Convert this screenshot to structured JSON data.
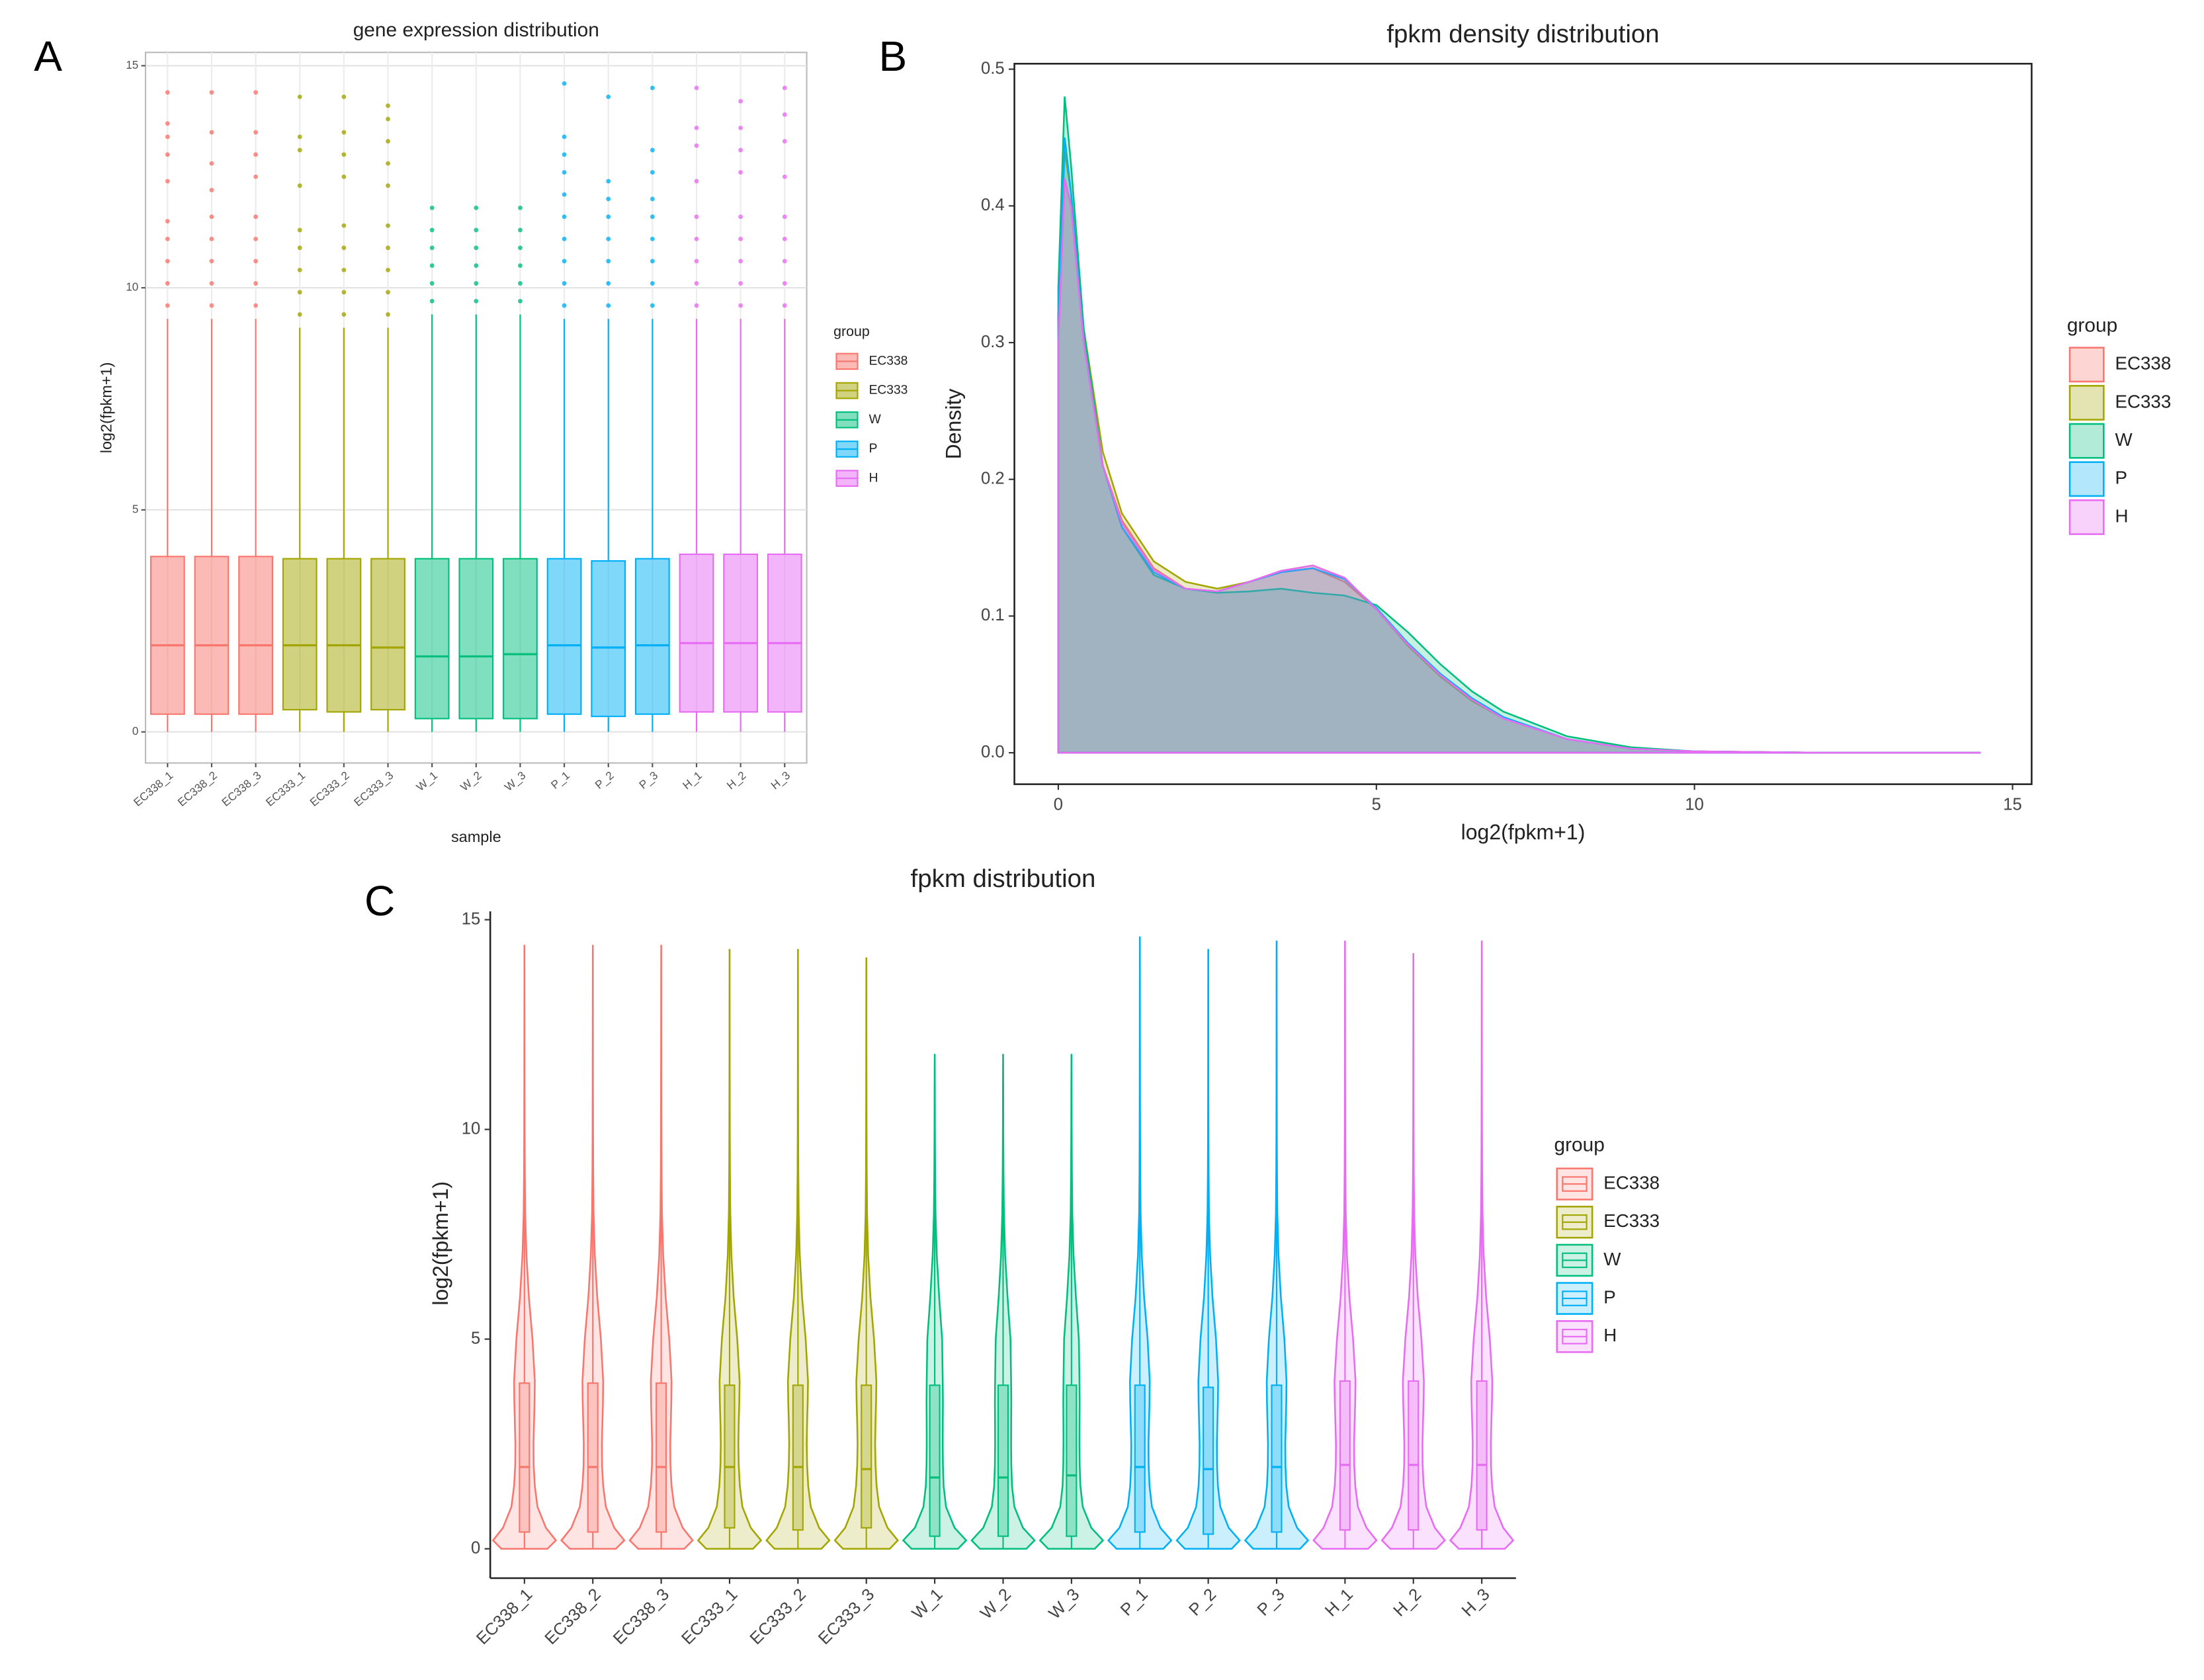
{
  "chart_data": [
    {
      "type": "boxplot",
      "panel_label": "A",
      "title": "gene expression distribution",
      "x_label": "sample",
      "y_label": "log2(fpkm+1)",
      "legend_title": "group",
      "categories": [
        "EC338_1",
        "EC338_2",
        "EC338_3",
        "EC333_1",
        "EC333_2",
        "EC333_3",
        "W_1",
        "W_2",
        "W_3",
        "P_1",
        "P_2",
        "P_3",
        "H_1",
        "H_2",
        "H_3"
      ],
      "ylim": [
        -0.7,
        15.3
      ],
      "yticks": [
        0,
        5,
        10,
        15
      ],
      "grid": true,
      "series": [
        {
          "name": "EC338",
          "color": "#F8766D",
          "boxes": [
            {
              "min": 0,
              "q1": 0.4,
              "median": 1.95,
              "q3": 3.95,
              "max": 9.3,
              "outliers": [
                9.6,
                10.1,
                10.6,
                11.1,
                11.5,
                12.4,
                13.0,
                13.4,
                13.7,
                14.4
              ]
            },
            {
              "min": 0,
              "q1": 0.4,
              "median": 1.95,
              "q3": 3.95,
              "max": 9.3,
              "outliers": [
                9.6,
                10.1,
                10.6,
                11.1,
                11.6,
                12.2,
                12.8,
                13.5,
                14.4
              ]
            },
            {
              "min": 0,
              "q1": 0.4,
              "median": 1.95,
              "q3": 3.95,
              "max": 9.3,
              "outliers": [
                9.6,
                10.1,
                10.6,
                11.1,
                11.6,
                12.5,
                13.0,
                13.5,
                14.4
              ]
            }
          ]
        },
        {
          "name": "EC333",
          "color": "#A3A500",
          "boxes": [
            {
              "min": 0,
              "q1": 0.5,
              "median": 1.95,
              "q3": 3.9,
              "max": 9.1,
              "outliers": [
                9.4,
                9.9,
                10.4,
                10.9,
                11.3,
                12.3,
                13.1,
                13.4,
                14.3
              ]
            },
            {
              "min": 0,
              "q1": 0.45,
              "median": 1.95,
              "q3": 3.9,
              "max": 9.1,
              "outliers": [
                9.4,
                9.9,
                10.4,
                10.9,
                11.4,
                12.5,
                13.0,
                13.5,
                14.3
              ]
            },
            {
              "min": 0,
              "q1": 0.5,
              "median": 1.9,
              "q3": 3.9,
              "max": 9.1,
              "outliers": [
                9.4,
                9.9,
                10.4,
                10.9,
                11.4,
                12.3,
                12.8,
                13.3,
                13.8,
                14.1
              ]
            }
          ]
        },
        {
          "name": "W",
          "color": "#00BF7D",
          "boxes": [
            {
              "min": 0,
              "q1": 0.3,
              "median": 1.7,
              "q3": 3.9,
              "max": 9.4,
              "outliers": [
                9.7,
                10.1,
                10.5,
                10.9,
                11.3,
                11.8
              ]
            },
            {
              "min": 0,
              "q1": 0.3,
              "median": 1.7,
              "q3": 3.9,
              "max": 9.4,
              "outliers": [
                9.7,
                10.1,
                10.5,
                10.9,
                11.3,
                11.8
              ]
            },
            {
              "min": 0,
              "q1": 0.3,
              "median": 1.75,
              "q3": 3.9,
              "max": 9.4,
              "outliers": [
                9.7,
                10.1,
                10.5,
                10.9,
                11.3,
                11.8
              ]
            }
          ]
        },
        {
          "name": "P",
          "color": "#00B0F6",
          "boxes": [
            {
              "min": 0,
              "q1": 0.4,
              "median": 1.95,
              "q3": 3.9,
              "max": 9.3,
              "outliers": [
                9.6,
                10.1,
                10.6,
                11.1,
                11.6,
                12.1,
                12.6,
                13.0,
                13.4,
                14.6
              ]
            },
            {
              "min": 0,
              "q1": 0.35,
              "median": 1.9,
              "q3": 3.85,
              "max": 9.3,
              "outliers": [
                9.6,
                10.1,
                10.6,
                11.1,
                11.6,
                12.0,
                12.4,
                14.3
              ]
            },
            {
              "min": 0,
              "q1": 0.4,
              "median": 1.95,
              "q3": 3.9,
              "max": 9.3,
              "outliers": [
                9.6,
                10.1,
                10.6,
                11.1,
                11.6,
                12.0,
                12.6,
                13.1,
                14.5
              ]
            }
          ]
        },
        {
          "name": "H",
          "color": "#E76BF3",
          "boxes": [
            {
              "min": 0,
              "q1": 0.45,
              "median": 2.0,
              "q3": 4.0,
              "max": 9.3,
              "outliers": [
                9.6,
                10.1,
                10.6,
                11.1,
                11.6,
                12.4,
                13.2,
                13.6,
                14.5
              ]
            },
            {
              "min": 0,
              "q1": 0.45,
              "median": 2.0,
              "q3": 4.0,
              "max": 9.3,
              "outliers": [
                9.6,
                10.1,
                10.6,
                11.1,
                11.6,
                12.6,
                13.1,
                13.6,
                14.2
              ]
            },
            {
              "min": 0,
              "q1": 0.45,
              "median": 2.0,
              "q3": 4.0,
              "max": 9.3,
              "outliers": [
                9.6,
                10.1,
                10.6,
                11.1,
                11.6,
                12.5,
                13.3,
                13.9,
                14.5
              ]
            }
          ]
        }
      ]
    },
    {
      "type": "density",
      "panel_label": "B",
      "title": "fpkm density distribution",
      "x_label": "log2(fpkm+1)",
      "y_label": "Density",
      "legend_title": "group",
      "x": [
        0,
        0.1,
        0.2,
        0.4,
        0.7,
        1,
        1.5,
        2,
        2.5,
        3,
        3.5,
        4,
        4.5,
        5,
        5.5,
        6,
        6.5,
        7,
        8,
        9,
        10,
        12,
        14.5
      ],
      "xlim": [
        -0.69,
        15.3
      ],
      "ylim": [
        -0.023,
        0.504
      ],
      "xticks": [
        0,
        5,
        10,
        15
      ],
      "yticks": [
        {
          "value": 0,
          "label": "0.0"
        },
        0.1,
        0.2,
        0.3,
        0.4,
        0.5
      ],
      "series": [
        {
          "name": "EC338",
          "color": "#F8766D",
          "values": [
            0.3,
            0.42,
            0.4,
            0.3,
            0.21,
            0.17,
            0.135,
            0.12,
            0.118,
            0.125,
            0.132,
            0.135,
            0.125,
            0.105,
            0.08,
            0.058,
            0.04,
            0.026,
            0.01,
            0.003,
            0.001,
            0,
            0
          ]
        },
        {
          "name": "EC333",
          "color": "#A3A500",
          "values": [
            0.32,
            0.44,
            0.41,
            0.31,
            0.22,
            0.175,
            0.14,
            0.125,
            0.12,
            0.125,
            0.133,
            0.137,
            0.128,
            0.105,
            0.078,
            0.056,
            0.038,
            0.025,
            0.01,
            0.003,
            0.001,
            0,
            0
          ]
        },
        {
          "name": "W",
          "color": "#00BF7D",
          "values": [
            0.34,
            0.48,
            0.43,
            0.31,
            0.21,
            0.165,
            0.13,
            0.12,
            0.117,
            0.118,
            0.12,
            0.117,
            0.115,
            0.108,
            0.088,
            0.065,
            0.045,
            0.03,
            0.012,
            0.004,
            0.001,
            0,
            0
          ]
        },
        {
          "name": "P",
          "color": "#00B0F6",
          "values": [
            0.32,
            0.45,
            0.41,
            0.3,
            0.21,
            0.165,
            0.132,
            0.12,
            0.118,
            0.125,
            0.132,
            0.135,
            0.127,
            0.106,
            0.08,
            0.058,
            0.04,
            0.026,
            0.01,
            0.003,
            0.001,
            0,
            0
          ]
        },
        {
          "name": "H",
          "color": "#E76BF3",
          "values": [
            0.3,
            0.42,
            0.4,
            0.3,
            0.21,
            0.168,
            0.134,
            0.12,
            0.118,
            0.125,
            0.133,
            0.137,
            0.128,
            0.105,
            0.079,
            0.057,
            0.039,
            0.025,
            0.01,
            0.003,
            0.001,
            0,
            0
          ]
        }
      ]
    },
    {
      "type": "violin",
      "panel_label": "C",
      "title": "fpkm distribution",
      "y_label": "log2(fpkm+1)",
      "legend_title": "group",
      "categories": [
        "EC338_1",
        "EC338_2",
        "EC338_3",
        "EC333_1",
        "EC333_2",
        "EC333_3",
        "W_1",
        "W_2",
        "W_3",
        "P_1",
        "P_2",
        "P_3",
        "H_1",
        "H_2",
        "H_3"
      ],
      "ylim": [
        -0.7,
        15.2
      ],
      "yticks": [
        0,
        5,
        10,
        15
      ],
      "density_y": [
        0,
        0.2,
        0.5,
        1,
        1.5,
        2,
        2.5,
        3,
        3.5,
        4,
        5,
        6,
        7,
        8,
        9,
        10,
        11
      ],
      "series": [
        {
          "name": "EC338",
          "color": "#F8766D",
          "density": [
            0.3,
            0.41,
            0.28,
            0.17,
            0.135,
            0.12,
            0.118,
            0.125,
            0.132,
            0.135,
            0.105,
            0.058,
            0.026,
            0.01,
            0.005,
            0.003,
            0.002
          ],
          "boxes": [
            {
              "min": 0,
              "q1": 0.4,
              "median": 1.95,
              "q3": 3.95,
              "max": 14.4
            },
            {
              "min": 0,
              "q1": 0.4,
              "median": 1.95,
              "q3": 3.95,
              "max": 14.4
            },
            {
              "min": 0,
              "q1": 0.4,
              "median": 1.95,
              "q3": 3.95,
              "max": 14.4
            }
          ]
        },
        {
          "name": "EC333",
          "color": "#A3A500",
          "density": [
            0.32,
            0.43,
            0.29,
            0.175,
            0.14,
            0.125,
            0.12,
            0.125,
            0.133,
            0.137,
            0.105,
            0.056,
            0.025,
            0.01,
            0.005,
            0.003,
            0.002
          ],
          "boxes": [
            {
              "min": 0,
              "q1": 0.5,
              "median": 1.95,
              "q3": 3.9,
              "max": 14.3
            },
            {
              "min": 0,
              "q1": 0.45,
              "median": 1.95,
              "q3": 3.9,
              "max": 14.3
            },
            {
              "min": 0,
              "q1": 0.5,
              "median": 1.9,
              "q3": 3.9,
              "max": 14.1
            }
          ]
        },
        {
          "name": "W",
          "color": "#00BF7D",
          "density": [
            0.34,
            0.46,
            0.29,
            0.165,
            0.13,
            0.12,
            0.117,
            0.118,
            0.12,
            0.117,
            0.108,
            0.065,
            0.03,
            0.012,
            0.006,
            0.003,
            0.002
          ],
          "boxes": [
            {
              "min": 0,
              "q1": 0.3,
              "median": 1.7,
              "q3": 3.9,
              "max": 11.8
            },
            {
              "min": 0,
              "q1": 0.3,
              "median": 1.7,
              "q3": 3.9,
              "max": 11.8
            },
            {
              "min": 0,
              "q1": 0.3,
              "median": 1.75,
              "q3": 3.9,
              "max": 11.8
            }
          ]
        },
        {
          "name": "P",
          "color": "#00B0F6",
          "density": [
            0.32,
            0.43,
            0.28,
            0.165,
            0.132,
            0.12,
            0.118,
            0.125,
            0.132,
            0.135,
            0.106,
            0.058,
            0.026,
            0.01,
            0.005,
            0.003,
            0.002
          ],
          "boxes": [
            {
              "min": 0,
              "q1": 0.4,
              "median": 1.95,
              "q3": 3.9,
              "max": 14.6
            },
            {
              "min": 0,
              "q1": 0.35,
              "median": 1.9,
              "q3": 3.85,
              "max": 14.3
            },
            {
              "min": 0,
              "q1": 0.4,
              "median": 1.95,
              "q3": 3.9,
              "max": 14.5
            }
          ]
        },
        {
          "name": "H",
          "color": "#E76BF3",
          "density": [
            0.3,
            0.41,
            0.28,
            0.168,
            0.134,
            0.12,
            0.118,
            0.125,
            0.133,
            0.137,
            0.105,
            0.057,
            0.025,
            0.01,
            0.005,
            0.003,
            0.002
          ],
          "boxes": [
            {
              "min": 0,
              "q1": 0.45,
              "median": 2.0,
              "q3": 4.0,
              "max": 14.5
            },
            {
              "min": 0,
              "q1": 0.45,
              "median": 2.0,
              "q3": 4.0,
              "max": 14.2
            },
            {
              "min": 0,
              "q1": 0.45,
              "median": 2.0,
              "q3": 4.0,
              "max": 14.5
            }
          ]
        }
      ]
    }
  ]
}
